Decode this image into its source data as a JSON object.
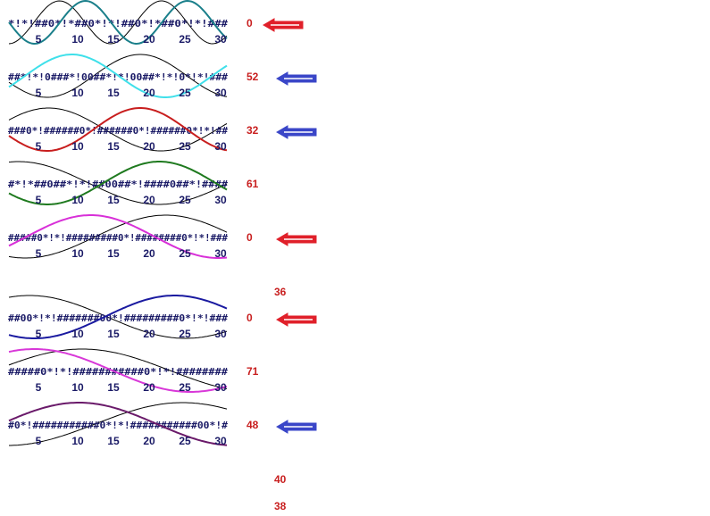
{
  "ticks": [
    5,
    10,
    15,
    20,
    25,
    30
  ],
  "rows": [
    {
      "pattern": "*!*!##0*!*##0*!*!##0*!*##0*!*!###",
      "number": 0,
      "wave_color": "#1a7f8a",
      "arrow_color": "#e0202a"
    },
    {
      "pattern": "##*!*!0###*!00##*!*!00##*!*!0*!*!###",
      "number": 52,
      "wave_color": "#3fe0ea",
      "arrow_color": "#3a46c8"
    },
    {
      "pattern": "###0*!######0*!######0*!######0*!*!##",
      "number": 32,
      "wave_color": "#c81e1e",
      "arrow_color": "#3a46c8"
    },
    {
      "pattern": "#*!*##0##*!*!##00##*!####0##*!####",
      "number": 61,
      "wave_color": "#1f7a1f"
    },
    {
      "pattern": "#####0*!*!#########0*!########0*!*!###",
      "number": 0,
      "wave_color": "#d830d8",
      "arrow_color": "#e0202a"
    },
    {
      "pattern": "##00*!*!#######00*!#########0*!*!###",
      "number": 0,
      "wave_color": "#1a1aa0",
      "arrow_color": "#e0202a"
    },
    {
      "pattern": "#####0*!*!###########0*!*!########",
      "number": 71,
      "wave_color": "#d838d8"
    },
    {
      "pattern": "#0*!###########0*!*!###########00*!#",
      "number": 48,
      "wave_color": "#6a1a6a",
      "arrow_color": "#3a46c8"
    }
  ],
  "extra_numbers": [
    36,
    40,
    38
  ]
}
